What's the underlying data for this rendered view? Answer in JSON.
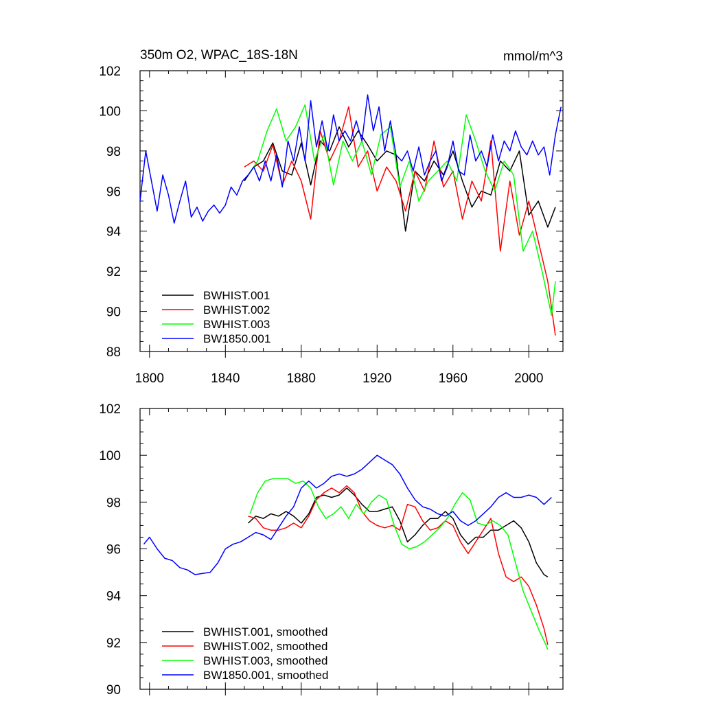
{
  "title_left": "350m O2, WPAC_18S-18N",
  "title_right": "mmol/m^3",
  "colors": {
    "s1": "#000000",
    "s2": "#ff0000",
    "s3": "#00ff00",
    "s4": "#0000ff"
  },
  "chart_data": [
    {
      "type": "line",
      "title": "350m O2, WPAC_18S-18N",
      "units": "mmol/m^3",
      "xlim": [
        1795,
        2018
      ],
      "ylim": [
        88,
        102
      ],
      "xticks": [
        1800,
        1840,
        1880,
        1920,
        1960,
        2000
      ],
      "yticks": [
        88,
        90,
        92,
        94,
        96,
        98,
        100,
        102
      ],
      "xtick_labels": [
        "1800",
        "1840",
        "1880",
        "1920",
        "1960",
        "2000"
      ],
      "ytick_labels": [
        "88",
        "90",
        "92",
        "94",
        "96",
        "98",
        "100",
        "102"
      ],
      "legend_position": "bottom-left",
      "series": [
        {
          "name": "BWHIST.001",
          "color": "#000000",
          "x": [
            1850,
            1855,
            1860,
            1865,
            1870,
            1875,
            1880,
            1885,
            1890,
            1895,
            1900,
            1905,
            1910,
            1915,
            1920,
            1925,
            1930,
            1935,
            1940,
            1945,
            1950,
            1955,
            1960,
            1965,
            1970,
            1975,
            1980,
            1985,
            1990,
            1995,
            2000,
            2005,
            2010,
            2014
          ],
          "y": [
            96.5,
            97.2,
            97.5,
            98.4,
            97.0,
            96.8,
            98.4,
            96.3,
            98.5,
            98.0,
            99.2,
            98.2,
            99.0,
            98.3,
            97.5,
            98.0,
            97.8,
            94.0,
            97.0,
            96.5,
            97.5,
            96.8,
            98.0,
            96.5,
            95.2,
            96.0,
            95.8,
            97.5,
            97.0,
            98.0,
            94.8,
            95.5,
            94.2,
            95.2
          ]
        },
        {
          "name": "BWHIST.002",
          "color": "#ff0000",
          "x": [
            1850,
            1855,
            1860,
            1865,
            1870,
            1875,
            1880,
            1885,
            1890,
            1895,
            1900,
            1905,
            1910,
            1915,
            1920,
            1925,
            1930,
            1935,
            1940,
            1945,
            1950,
            1955,
            1960,
            1965,
            1970,
            1975,
            1980,
            1985,
            1990,
            1995,
            2000,
            2005,
            2010,
            2014
          ],
          "y": [
            97.2,
            97.5,
            97.0,
            98.3,
            96.3,
            97.5,
            96.5,
            94.6,
            99.0,
            97.5,
            98.5,
            100.2,
            97.2,
            98.0,
            96.0,
            97.2,
            96.5,
            95.0,
            97.0,
            96.0,
            98.5,
            96.2,
            97.0,
            94.6,
            96.5,
            95.5,
            98.5,
            93.0,
            96.5,
            93.8,
            95.5,
            93.5,
            91.5,
            88.8
          ]
        },
        {
          "name": "BWHIST.003",
          "color": "#00ff00",
          "x": [
            1852,
            1857,
            1862,
            1867,
            1872,
            1877,
            1882,
            1887,
            1892,
            1897,
            1902,
            1907,
            1912,
            1917,
            1922,
            1927,
            1932,
            1937,
            1942,
            1947,
            1952,
            1957,
            1962,
            1967,
            1972,
            1977,
            1982,
            1987,
            1992,
            1997,
            2002,
            2007,
            2012,
            2014
          ],
          "y": [
            96.8,
            97.5,
            99.0,
            100.1,
            98.5,
            99.2,
            100.3,
            97.5,
            98.8,
            96.3,
            98.5,
            97.5,
            98.5,
            96.8,
            98.8,
            99.2,
            96.2,
            97.5,
            95.5,
            96.5,
            97.0,
            97.5,
            96.5,
            99.8,
            98.5,
            97.0,
            96.0,
            97.5,
            96.8,
            93.0,
            94.0,
            92.0,
            89.8,
            91.5
          ]
        },
        {
          "name": "BW1850.001",
          "color": "#0000ff",
          "x": [
            1795,
            1798,
            1801,
            1804,
            1807,
            1810,
            1813,
            1816,
            1819,
            1822,
            1825,
            1828,
            1831,
            1834,
            1837,
            1840,
            1843,
            1846,
            1849,
            1852,
            1855,
            1858,
            1861,
            1864,
            1867,
            1870,
            1873,
            1876,
            1879,
            1882,
            1885,
            1888,
            1891,
            1894,
            1897,
            1900,
            1903,
            1906,
            1909,
            1912,
            1915,
            1918,
            1921,
            1924,
            1927,
            1930,
            1933,
            1936,
            1939,
            1942,
            1945,
            1948,
            1951,
            1954,
            1957,
            1960,
            1963,
            1966,
            1969,
            1972,
            1975,
            1978,
            1981,
            1984,
            1987,
            1990,
            1993,
            1996,
            1999,
            2002,
            2005,
            2008,
            2011,
            2014,
            2017
          ],
          "y": [
            95.5,
            98.0,
            96.5,
            95.0,
            96.8,
            95.8,
            94.4,
            95.5,
            96.5,
            94.7,
            95.2,
            94.5,
            95.0,
            95.3,
            94.9,
            95.3,
            96.2,
            95.8,
            96.5,
            96.8,
            97.2,
            96.5,
            97.5,
            96.5,
            97.8,
            96.2,
            98.5,
            97.5,
            99.2,
            97.5,
            100.5,
            98.2,
            99.5,
            98.0,
            99.8,
            98.5,
            99.0,
            98.5,
            99.5,
            98.5,
            100.8,
            99.0,
            100.2,
            98.0,
            99.5,
            97.8,
            97.5,
            98.0,
            97.0,
            98.2,
            96.8,
            97.5,
            98.0,
            96.5,
            97.2,
            98.5,
            97.0,
            96.8,
            98.8,
            97.5,
            98.0,
            97.2,
            98.8,
            97.5,
            98.5,
            98.0,
            99.0,
            98.2,
            97.8,
            98.5,
            97.8,
            98.2,
            96.8,
            98.8,
            100.2
          ]
        }
      ]
    },
    {
      "type": "line",
      "xlim": [
        1795,
        2018
      ],
      "ylim": [
        90,
        102
      ],
      "xticks": [
        1800,
        1840,
        1880,
        1920,
        1960,
        2000
      ],
      "yticks": [
        90,
        92,
        94,
        96,
        98,
        100,
        102
      ],
      "ytick_labels": [
        "90",
        "92",
        "94",
        "96",
        "98",
        "100",
        "102"
      ],
      "legend_position": "bottom-left",
      "series": [
        {
          "name": "BWHIST.001, smoothed",
          "color": "#000000",
          "x": [
            1852,
            1856,
            1860,
            1864,
            1868,
            1872,
            1876,
            1880,
            1884,
            1888,
            1892,
            1896,
            1900,
            1904,
            1908,
            1912,
            1916,
            1920,
            1924,
            1928,
            1932,
            1936,
            1940,
            1944,
            1948,
            1952,
            1956,
            1960,
            1964,
            1968,
            1972,
            1976,
            1980,
            1984,
            1988,
            1992,
            1996,
            2000,
            2004,
            2008,
            2010
          ],
          "y": [
            97.1,
            97.4,
            97.3,
            97.5,
            97.4,
            97.6,
            97.4,
            97.1,
            97.5,
            98.2,
            98.3,
            98.2,
            98.3,
            98.6,
            98.3,
            97.9,
            97.6,
            97.6,
            97.7,
            97.8,
            97.2,
            96.3,
            96.6,
            97.0,
            97.3,
            97.3,
            97.6,
            97.3,
            96.6,
            96.2,
            96.5,
            96.5,
            96.8,
            96.8,
            97.0,
            97.2,
            96.9,
            96.3,
            95.4,
            94.9,
            94.8
          ]
        },
        {
          "name": "BWHIST.002, smoothed",
          "color": "#ff0000",
          "x": [
            1852,
            1856,
            1860,
            1864,
            1868,
            1872,
            1876,
            1880,
            1884,
            1888,
            1892,
            1896,
            1900,
            1904,
            1908,
            1912,
            1916,
            1920,
            1924,
            1928,
            1932,
            1936,
            1940,
            1944,
            1948,
            1952,
            1956,
            1960,
            1964,
            1968,
            1972,
            1976,
            1980,
            1984,
            1988,
            1992,
            1996,
            2000,
            2004,
            2008,
            2010
          ],
          "y": [
            97.4,
            97.3,
            96.9,
            96.8,
            96.8,
            96.9,
            97.1,
            96.9,
            97.4,
            98.1,
            98.4,
            98.6,
            98.4,
            98.7,
            98.4,
            97.6,
            97.2,
            97.0,
            96.9,
            97.0,
            96.8,
            97.9,
            97.8,
            97.2,
            96.8,
            96.9,
            97.2,
            97.0,
            96.3,
            95.8,
            96.3,
            96.8,
            97.3,
            95.8,
            94.8,
            94.6,
            94.8,
            94.4,
            93.6,
            92.6,
            91.9
          ]
        },
        {
          "name": "BWHIST.003, smoothed",
          "color": "#00ff00",
          "x": [
            1853,
            1857,
            1861,
            1865,
            1869,
            1873,
            1877,
            1881,
            1885,
            1889,
            1893,
            1897,
            1901,
            1905,
            1909,
            1913,
            1917,
            1921,
            1925,
            1929,
            1933,
            1937,
            1941,
            1945,
            1949,
            1953,
            1957,
            1961,
            1965,
            1969,
            1973,
            1977,
            1981,
            1985,
            1989,
            1993,
            1997,
            2001,
            2005,
            2009,
            2010
          ],
          "y": [
            97.5,
            98.4,
            98.9,
            99.0,
            99.0,
            99.0,
            98.8,
            98.9,
            98.6,
            97.8,
            97.3,
            97.5,
            97.8,
            97.3,
            97.9,
            97.5,
            98.0,
            98.3,
            98.1,
            97.0,
            96.2,
            96.0,
            96.1,
            96.3,
            96.6,
            96.9,
            97.3,
            97.9,
            98.4,
            98.1,
            97.1,
            97.0,
            97.2,
            97.0,
            96.6,
            95.4,
            94.2,
            93.4,
            92.6,
            91.9,
            91.7
          ]
        },
        {
          "name": "BW1850.001, smoothed",
          "color": "#0000ff",
          "x": [
            1797,
            1800,
            1804,
            1808,
            1812,
            1816,
            1820,
            1824,
            1828,
            1832,
            1836,
            1840,
            1844,
            1848,
            1852,
            1856,
            1860,
            1864,
            1868,
            1872,
            1876,
            1880,
            1884,
            1888,
            1892,
            1896,
            1900,
            1904,
            1908,
            1912,
            1916,
            1920,
            1924,
            1928,
            1932,
            1936,
            1940,
            1944,
            1948,
            1952,
            1956,
            1960,
            1964,
            1968,
            1972,
            1976,
            1980,
            1984,
            1988,
            1992,
            1996,
            2000,
            2004,
            2008,
            2012
          ],
          "y": [
            96.2,
            96.5,
            96.0,
            95.6,
            95.5,
            95.2,
            95.1,
            94.9,
            94.95,
            95.0,
            95.4,
            96.0,
            96.2,
            96.3,
            96.5,
            96.7,
            96.6,
            96.4,
            96.9,
            97.4,
            97.8,
            98.6,
            98.9,
            98.6,
            98.8,
            99.1,
            99.2,
            99.1,
            99.2,
            99.4,
            99.7,
            100.0,
            99.8,
            99.6,
            99.2,
            98.6,
            98.1,
            97.8,
            97.7,
            97.5,
            97.4,
            97.6,
            97.2,
            97.0,
            97.2,
            97.5,
            97.8,
            98.2,
            98.4,
            98.2,
            98.2,
            98.3,
            98.2,
            97.9,
            98.2
          ]
        }
      ]
    }
  ]
}
